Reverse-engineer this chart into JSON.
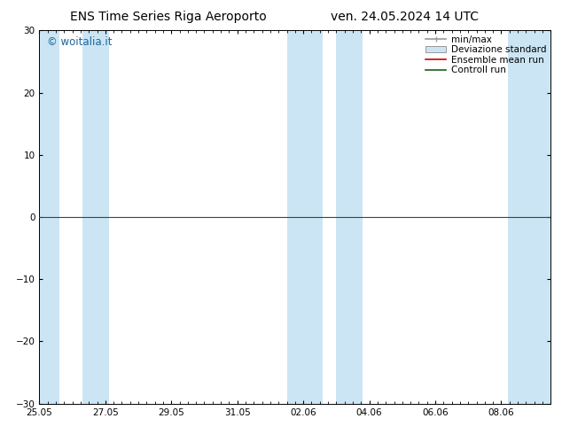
{
  "title": "ENS Time Series Riga Aeroporto",
  "title2": "ven. 24.05.2024 14 UTC",
  "watermark": "© woitalia.it",
  "ylim": [
    -30,
    30
  ],
  "yticks": [
    -30,
    -20,
    -10,
    0,
    10,
    20,
    30
  ],
  "xlim_start": 0.0,
  "xlim_end": 15.5,
  "xtick_labels": [
    "25.05",
    "27.05",
    "29.05",
    "31.05",
    "02.06",
    "04.06",
    "06.06",
    "08.06"
  ],
  "xtick_positions": [
    0,
    2,
    4,
    6,
    8,
    10,
    12,
    14
  ],
  "shaded_bands": [
    [
      0.0,
      0.6
    ],
    [
      1.3,
      2.1
    ],
    [
      7.5,
      8.6
    ],
    [
      9.0,
      9.8
    ],
    [
      14.2,
      15.5
    ]
  ],
  "shade_color": "#cce5f5",
  "background_color": "#ffffff",
  "zero_line_color": "#1a5e1a",
  "legend_items": [
    {
      "label": "min/max",
      "color": "#aaaaaa",
      "style": "errbar"
    },
    {
      "label": "Deviazione standard",
      "color": "#cce5f5",
      "style": "box"
    },
    {
      "label": "Ensemble mean run",
      "color": "#cc0000",
      "style": "line"
    },
    {
      "label": "Controll run",
      "color": "#1a5e1a",
      "style": "line"
    }
  ],
  "title_fontsize": 10,
  "tick_fontsize": 7.5,
  "legend_fontsize": 7.5,
  "watermark_fontsize": 8.5,
  "watermark_color": "#1a6699"
}
